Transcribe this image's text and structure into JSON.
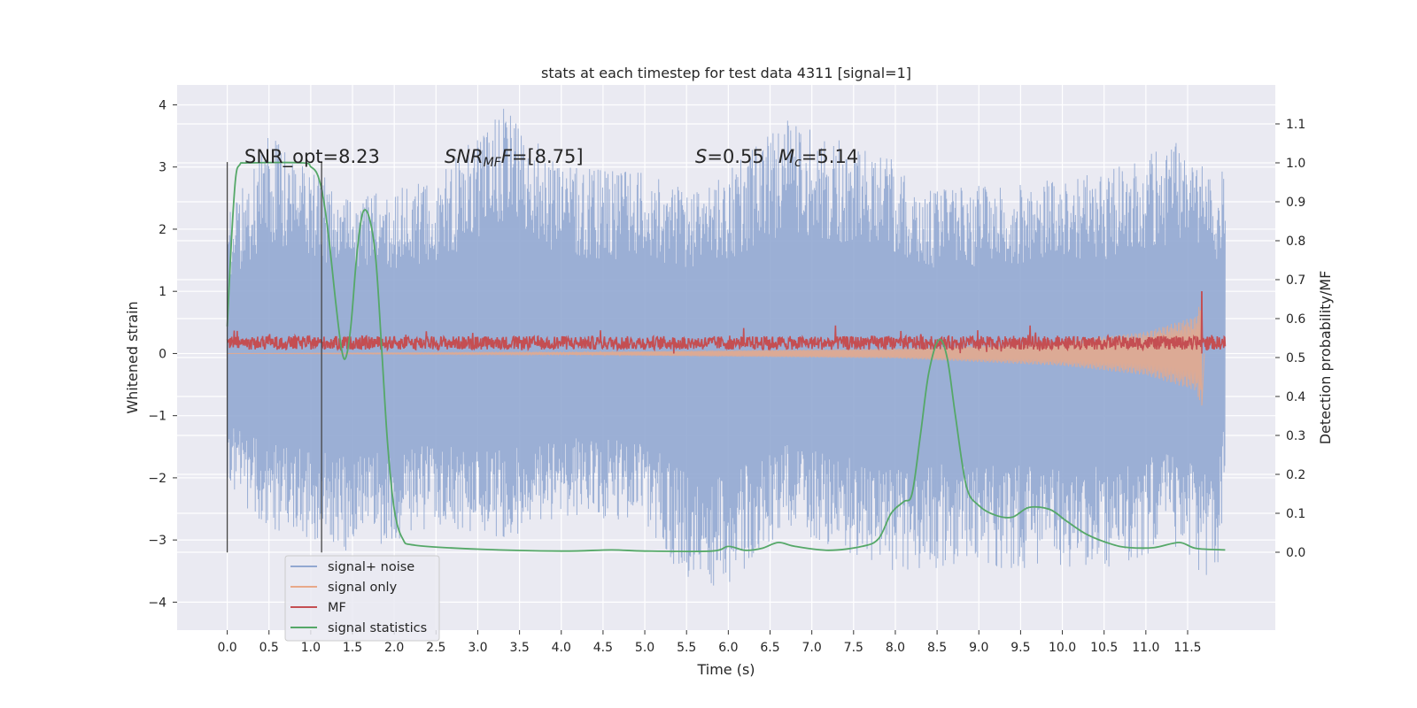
{
  "chart_data": {
    "type": "line",
    "title": "stats at each timestep for test data 4311 [signal=1]",
    "xlabel": "Time (s)",
    "ylabel_left": "Whitened strain",
    "ylabel_right": "Detection probability/MF",
    "xlim": [
      -0.6,
      12.55
    ],
    "ylim_left": [
      -4.45,
      4.32
    ],
    "ylim_right": [
      -0.2,
      1.2
    ],
    "x_ticks": [
      "0.0",
      "0.5",
      "1.0",
      "1.5",
      "2.0",
      "2.5",
      "3.0",
      "3.5",
      "4.0",
      "4.5",
      "5.0",
      "5.5",
      "6.0",
      "6.5",
      "7.0",
      "7.5",
      "8.0",
      "8.5",
      "9.0",
      "9.5",
      "10.0",
      "10.5",
      "11.0",
      "11.5"
    ],
    "y_ticks_left": [
      "4",
      "3",
      "2",
      "1",
      "0",
      "−1",
      "−2",
      "−3",
      "−4"
    ],
    "y_ticks_right": [
      "1.1",
      "1.0",
      "0.9",
      "0.8",
      "0.7",
      "0.6",
      "0.5",
      "0.4",
      "0.3",
      "0.2",
      "0.1",
      "0.0"
    ],
    "grid": true,
    "legend_placement": "lower-left",
    "annotations": {
      "snr_opt": "SNR_opt=8.23",
      "snr_mf_label": "SNR",
      "snr_mf_sub": "MF",
      "snr_mf_value": "=[8.75]",
      "s_label": "S",
      "s_value": "=0.55",
      "mc_label": "M",
      "mc_sub": "c",
      "mc_value": "=5.14"
    },
    "vertical_markers_s": [
      0.0,
      1.13
    ],
    "series": [
      {
        "name": "signal+ noise",
        "axis": "left",
        "color": "#92a8d1",
        "x_range": [
          0.0,
          11.95
        ],
        "envelope_points": [
          {
            "x": 0.0,
            "max": 2.2,
            "min": -2.2
          },
          {
            "x": 0.5,
            "max": 3.5,
            "min": -2.8
          },
          {
            "x": 1.0,
            "max": 3.0,
            "min": -3.0
          },
          {
            "x": 1.5,
            "max": 2.5,
            "min": -3.2
          },
          {
            "x": 2.5,
            "max": 2.8,
            "min": -2.8
          },
          {
            "x": 3.3,
            "max": 3.95,
            "min": -3.0
          },
          {
            "x": 4.0,
            "max": 3.0,
            "min": -2.6
          },
          {
            "x": 5.0,
            "max": 2.9,
            "min": -2.7
          },
          {
            "x": 5.7,
            "max": 2.6,
            "min": -4.1
          },
          {
            "x": 6.7,
            "max": 3.75,
            "min": -2.8
          },
          {
            "x": 8.0,
            "max": 3.1,
            "min": -3.5
          },
          {
            "x": 8.3,
            "max": 2.6,
            "min": -3.45
          },
          {
            "x": 10.5,
            "max": 2.9,
            "min": -3.45
          },
          {
            "x": 11.35,
            "max": 3.4,
            "min": -3.1
          },
          {
            "x": 11.85,
            "max": 2.8,
            "min": -3.85
          },
          {
            "x": 11.95,
            "max": 3.0,
            "min": -2.0
          }
        ]
      },
      {
        "name": "signal only",
        "axis": "left",
        "color": "#e8a98a",
        "envelope_points": [
          {
            "x": 0.0,
            "amplitude": 0.0
          },
          {
            "x": 4.0,
            "amplitude": 0.02
          },
          {
            "x": 8.0,
            "amplitude": 0.08
          },
          {
            "x": 10.0,
            "amplitude": 0.2
          },
          {
            "x": 11.0,
            "amplitude": 0.35
          },
          {
            "x": 11.6,
            "amplitude": 0.6
          },
          {
            "x": 11.67,
            "amplitude": 0.9
          },
          {
            "x": 11.7,
            "amplitude": 0.0
          }
        ]
      },
      {
        "name": "MF",
        "axis": "left",
        "color": "#c44e52",
        "baseline": 0.17,
        "range": [
          0.0,
          0.45
        ],
        "spike": {
          "x": 11.67,
          "value": 1.0
        }
      },
      {
        "name": "signal statistics",
        "axis": "right",
        "color": "#55a868",
        "points": [
          [
            0.0,
            0.58
          ],
          [
            0.05,
            0.8
          ],
          [
            0.1,
            0.96
          ],
          [
            0.15,
            0.995
          ],
          [
            0.25,
            1.0
          ],
          [
            0.9,
            1.0
          ],
          [
            1.0,
            0.99
          ],
          [
            1.08,
            0.97
          ],
          [
            1.15,
            0.91
          ],
          [
            1.22,
            0.8
          ],
          [
            1.3,
            0.64
          ],
          [
            1.37,
            0.52
          ],
          [
            1.42,
            0.5
          ],
          [
            1.48,
            0.58
          ],
          [
            1.55,
            0.76
          ],
          [
            1.62,
            0.87
          ],
          [
            1.7,
            0.86
          ],
          [
            1.78,
            0.75
          ],
          [
            1.85,
            0.52
          ],
          [
            1.92,
            0.28
          ],
          [
            2.0,
            0.11
          ],
          [
            2.1,
            0.035
          ],
          [
            2.25,
            0.018
          ],
          [
            3.0,
            0.008
          ],
          [
            4.0,
            0.003
          ],
          [
            4.6,
            0.006
          ],
          [
            5.0,
            0.003
          ],
          [
            5.8,
            0.003
          ],
          [
            6.0,
            0.015
          ],
          [
            6.2,
            0.005
          ],
          [
            6.4,
            0.01
          ],
          [
            6.6,
            0.025
          ],
          [
            6.8,
            0.015
          ],
          [
            7.2,
            0.005
          ],
          [
            7.6,
            0.015
          ],
          [
            7.8,
            0.035
          ],
          [
            7.95,
            0.1
          ],
          [
            8.1,
            0.13
          ],
          [
            8.2,
            0.15
          ],
          [
            8.3,
            0.3
          ],
          [
            8.4,
            0.46
          ],
          [
            8.52,
            0.545
          ],
          [
            8.62,
            0.5
          ],
          [
            8.72,
            0.35
          ],
          [
            8.85,
            0.17
          ],
          [
            9.0,
            0.12
          ],
          [
            9.2,
            0.095
          ],
          [
            9.4,
            0.09
          ],
          [
            9.6,
            0.115
          ],
          [
            9.85,
            0.11
          ],
          [
            10.05,
            0.08
          ],
          [
            10.3,
            0.045
          ],
          [
            10.6,
            0.02
          ],
          [
            10.8,
            0.012
          ],
          [
            11.1,
            0.012
          ],
          [
            11.4,
            0.025
          ],
          [
            11.6,
            0.01
          ],
          [
            11.95,
            0.006
          ]
        ]
      }
    ]
  }
}
